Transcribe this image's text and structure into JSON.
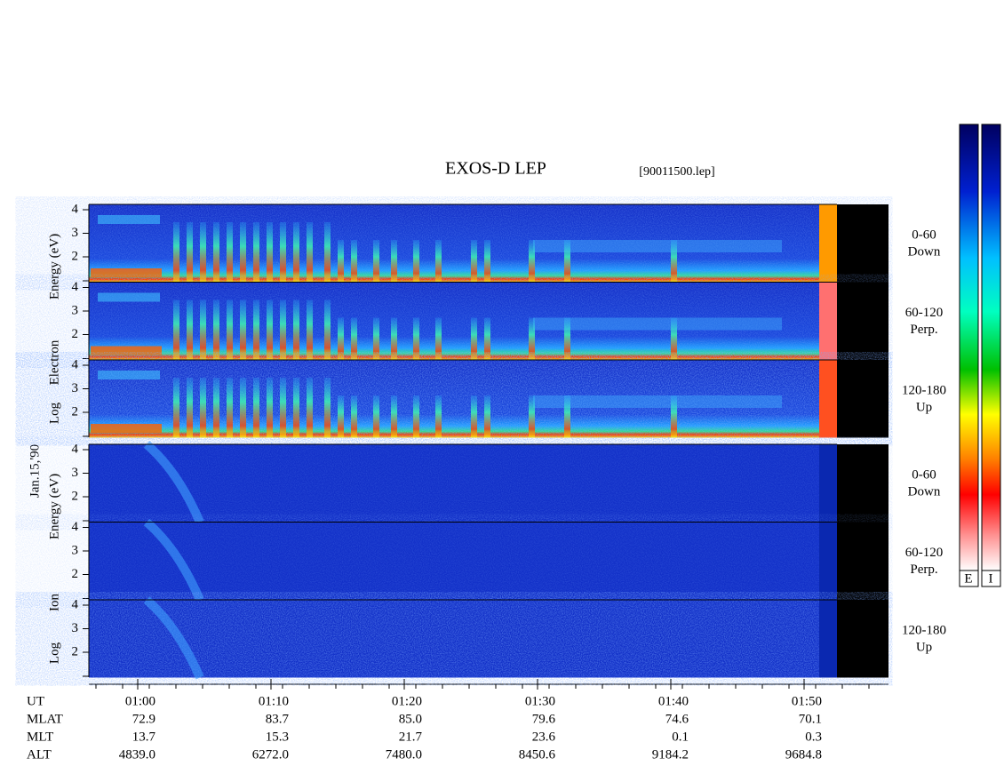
{
  "header": {
    "title": "EXOS-D LEP",
    "file": "[90011500.lep]"
  },
  "date": "Jan.15,'90",
  "electron": {
    "axis_label": [
      "Log",
      "Electron",
      "Energy (eV)"
    ],
    "panels": [
      {
        "angle": "0-60",
        "direction": "Down"
      },
      {
        "angle": "60-120",
        "direction": "Perp."
      },
      {
        "angle": "120-180",
        "direction": "Up"
      }
    ]
  },
  "ion": {
    "axis_label": [
      "Log",
      "Ion",
      "Energy (eV)"
    ],
    "panels": [
      {
        "angle": "0-60",
        "direction": "Down"
      },
      {
        "angle": "60-120",
        "direction": "Perp."
      },
      {
        "angle": "120-180",
        "direction": "Up"
      }
    ]
  },
  "y_tick_labels": [
    "4",
    "3",
    "2"
  ],
  "orbit": {
    "rows": [
      {
        "label": "UT",
        "values": [
          "01:00",
          "01:10",
          "01:20",
          "01:30",
          "01:40",
          "01:50"
        ]
      },
      {
        "label": "MLAT",
        "values": [
          "72.9",
          "83.7",
          "85.0",
          "79.6",
          "74.6",
          "70.1"
        ]
      },
      {
        "label": "MLT",
        "values": [
          "13.7",
          "15.3",
          "21.7",
          "23.6",
          "0.1",
          "0.3"
        ]
      },
      {
        "label": "ALT",
        "values": [
          "4839.0",
          "6272.0",
          "7480.0",
          "8450.6",
          "9184.2",
          "9684.8"
        ]
      }
    ]
  },
  "colorbar_labels": [
    "E",
    "I"
  ]
}
